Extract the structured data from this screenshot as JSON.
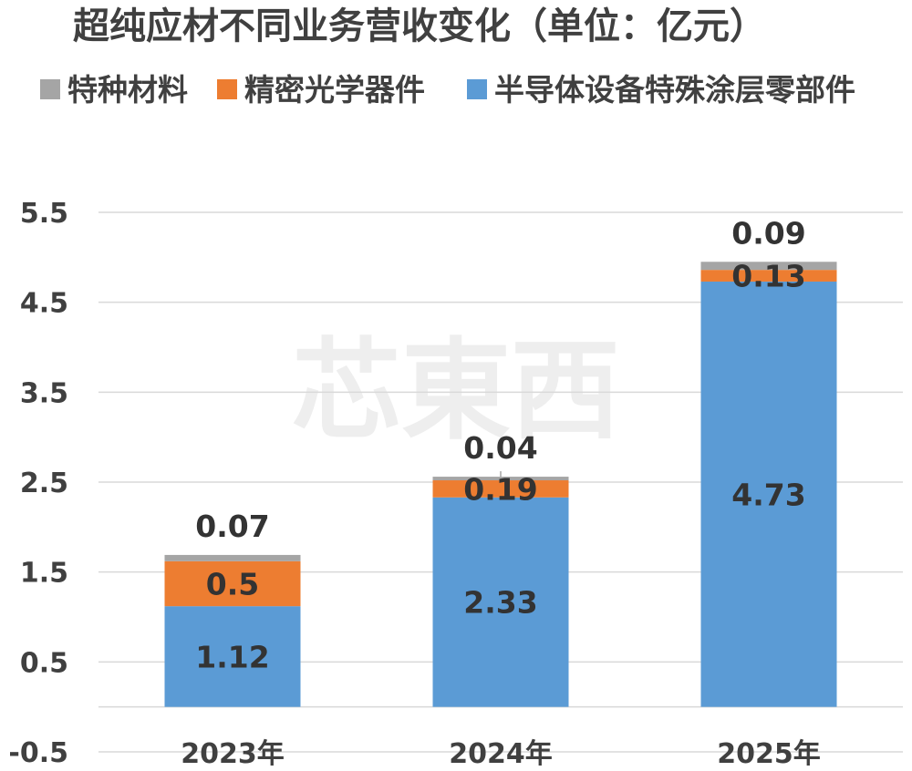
{
  "chart_data": {
    "type": "bar",
    "stacked": true,
    "title": "超纯应材不同业务营收变化（单位：亿元）",
    "categories": [
      "2023年",
      "2024年",
      "2025年"
    ],
    "series": [
      {
        "name": "半导体设备特殊涂层零部件",
        "values": [
          1.12,
          2.33,
          4.73
        ],
        "labels": [
          "1.12",
          "2.33",
          "4.73"
        ],
        "color": "#5b9bd5"
      },
      {
        "name": "精密光学器件",
        "values": [
          0.5,
          0.19,
          0.13
        ],
        "labels": [
          "0.5",
          "0.19",
          "0.13"
        ],
        "color": "#ed7d31"
      },
      {
        "name": "特种材料",
        "values": [
          0.07,
          0.04,
          0.09
        ],
        "labels": [
          "0.07",
          "0.04",
          "0.09"
        ],
        "color": "#a5a5a5"
      }
    ],
    "legend_order": [
      2,
      1,
      0
    ],
    "legend_position": "top",
    "ylim": [
      -0.5,
      5.5
    ],
    "yticks": [
      "5.5",
      "4.5",
      "3.5",
      "2.5",
      "1.5",
      "0.5",
      "-0.5"
    ],
    "grid": true
  },
  "watermark": "芯東西"
}
